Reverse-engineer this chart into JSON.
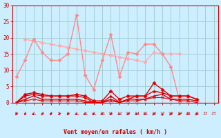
{
  "x": [
    0,
    1,
    2,
    3,
    4,
    5,
    6,
    7,
    8,
    9,
    10,
    11,
    12,
    13,
    14,
    15,
    16,
    17,
    18,
    19,
    20,
    21,
    22,
    23
  ],
  "bg_color": "#cceeff",
  "grid_color": "#99cccc",
  "xlabel": "Vent moyen/en rafales ( km/h )",
  "ylim": [
    0,
    30
  ],
  "xlim": [
    0,
    23
  ],
  "yticks": [
    0,
    5,
    10,
    15,
    20,
    25,
    30
  ],
  "line_light1": {
    "y": [
      8,
      13,
      19.5,
      15.5,
      13,
      13,
      15,
      27,
      8.5,
      4,
      13,
      21,
      8,
      15.5,
      15,
      18,
      18,
      15,
      11,
      0.5,
      0.5,
      null,
      null,
      null
    ],
    "color": "#ff8888",
    "marker": "D",
    "markersize": 2.5,
    "linewidth": 1.0
  },
  "line_light2": {
    "y": [
      null,
      19.5,
      19,
      18.5,
      18,
      17.5,
      17,
      16.5,
      16,
      15.5,
      15,
      14.5,
      14,
      13.5,
      13,
      12.5,
      15.5,
      15,
      15,
      15,
      null,
      null,
      null,
      null
    ],
    "color": "#ffaaaa",
    "marker": "D",
    "markersize": 2.5,
    "linewidth": 1.0
  },
  "line_dark1": {
    "y": [
      0,
      2.5,
      3,
      2.5,
      2,
      2,
      2,
      2.5,
      2,
      0.5,
      0.5,
      3.5,
      1,
      2,
      2,
      2,
      6,
      4,
      2,
      2,
      2,
      1,
      null,
      null
    ],
    "color": "#dd0000",
    "marker": "D",
    "markersize": 2.5,
    "linewidth": 1.0
  },
  "line_dark2": {
    "y": [
      0,
      1,
      2,
      1,
      1,
      1,
      1,
      1,
      0.5,
      0,
      0,
      1,
      0,
      1,
      1,
      1,
      2,
      2.5,
      1,
      1,
      1,
      0.5,
      null,
      null
    ],
    "color": "#dd0000",
    "marker": "+",
    "markersize": 3,
    "linewidth": 1.0
  },
  "line_dark3": {
    "y": [
      0,
      2,
      2.5,
      2,
      2,
      2,
      2,
      2,
      1.5,
      0,
      0,
      2,
      0,
      1,
      2,
      2,
      3.5,
      3,
      2,
      2,
      2,
      1,
      null,
      null
    ],
    "color": "#dd0000",
    "marker": "^",
    "markersize": 2.5,
    "linewidth": 1.0
  },
  "line_dark4": {
    "y": [
      0,
      0.5,
      1,
      0.5,
      0.5,
      0.5,
      0.5,
      0.5,
      0,
      0,
      0,
      0.5,
      0,
      0.5,
      0.5,
      1,
      1.5,
      1.5,
      1,
      0.5,
      0.5,
      0,
      null,
      null
    ],
    "color": "#dd0000",
    "marker": "x",
    "markersize": 3,
    "linewidth": 0.8
  },
  "arrows": {
    "x": [
      0,
      1,
      2,
      3,
      4,
      5,
      6,
      7,
      8,
      9,
      10,
      11,
      12,
      13,
      14,
      15,
      16,
      17,
      18,
      19,
      20,
      21
    ],
    "angles_deg": [
      225,
      210,
      270,
      225,
      225,
      225,
      225,
      270,
      270,
      270,
      270,
      225,
      270,
      225,
      270,
      270,
      45,
      0,
      45,
      45,
      270,
      45
    ],
    "color": "#dd0000"
  }
}
